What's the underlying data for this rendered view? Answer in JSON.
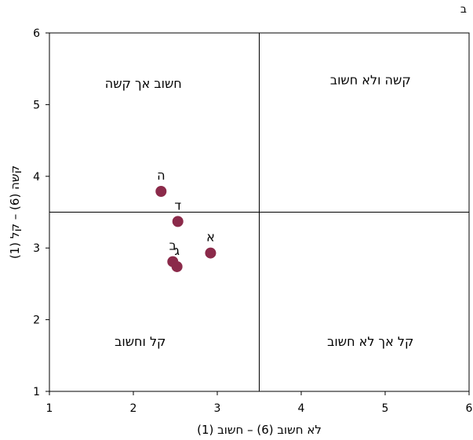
{
  "corner_label": "ב",
  "colors": {
    "point": "#8b2a4a",
    "axis": "#000000",
    "background": "#ffffff"
  },
  "chart_data": {
    "type": "scatter",
    "xlabel": "לא חשוב (6) – חשוב (1)",
    "ylabel": "קשה (6) – קל (1)",
    "xlim": [
      1,
      6
    ],
    "ylim": [
      1,
      6
    ],
    "xticks": [
      1,
      2,
      3,
      4,
      5,
      6
    ],
    "yticks": [
      1,
      2,
      3,
      4,
      5,
      6
    ],
    "divider_x": 3.5,
    "divider_y": 3.5,
    "grid": false,
    "quadrant_labels": {
      "top_left": "חשוב אך קשה",
      "top_right": "קשה ולא חשוב",
      "bottom_left": "קל וחשוב",
      "bottom_right": "קל אך לא חשוב"
    },
    "points": [
      {
        "label": "א",
        "x": 2.92,
        "y": 2.93
      },
      {
        "label": "ב",
        "x": 2.47,
        "y": 2.81
      },
      {
        "label": "ג",
        "x": 2.52,
        "y": 2.74
      },
      {
        "label": "ד",
        "x": 2.53,
        "y": 3.37
      },
      {
        "label": "ה",
        "x": 2.33,
        "y": 3.79
      }
    ]
  }
}
